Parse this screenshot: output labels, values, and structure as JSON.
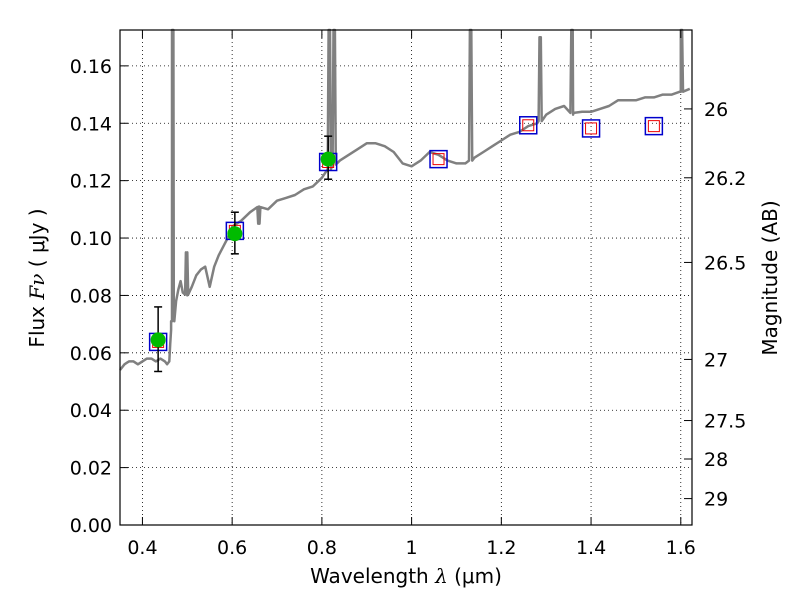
{
  "chart_data": {
    "type": "scatter",
    "xlabel_prefix": "Wavelength",
    "xlabel_symbol": "λ",
    "xlabel_unit": "(μm)",
    "ylabel_prefix": "Flux",
    "ylabel_symbol": "Fν",
    "ylabel_unit": "( μJy )",
    "y2label": "Magnitude (AB)",
    "xlim": [
      0.35,
      1.625
    ],
    "ylim": [
      0.0,
      0.1725
    ],
    "grid": true,
    "x_ticks": [
      0.4,
      0.6,
      0.8,
      1.0,
      1.2,
      1.4,
      1.6
    ],
    "x_tick_labels": [
      "0.4",
      "0.6",
      "0.8",
      "1",
      "1.2",
      "1.4",
      "1.6"
    ],
    "y_ticks": [
      0.0,
      0.02,
      0.04,
      0.06,
      0.08,
      0.1,
      0.12,
      0.14,
      0.16
    ],
    "y_tick_labels": [
      "0.00",
      "0.02",
      "0.04",
      "0.06",
      "0.08",
      "0.10",
      "0.12",
      "0.14",
      "0.16"
    ],
    "y2_tick_labels": [
      "26",
      "26.2",
      "26.5",
      "27",
      "27.5",
      "28",
      "29"
    ],
    "y2_tick_flux": [
      0.145,
      0.121,
      0.0915,
      0.0577,
      0.0364,
      0.023,
      0.0092
    ],
    "colors": {
      "model_spectrum": "#808080",
      "observed_marker": "#00bb00",
      "model_box": "#0000cc",
      "model_box_inner": "#ee0000",
      "errorbar": "#000000"
    },
    "series": [
      {
        "kind": "observed_photometry",
        "x": [
          0.435,
          0.606,
          0.814
        ],
        "y": [
          0.0645,
          0.1015,
          0.1275
        ],
        "yerr_low": [
          0.011,
          0.007,
          0.007
        ],
        "yerr_high": [
          0.0115,
          0.0075,
          0.008
        ]
      },
      {
        "kind": "model_photometry",
        "x": [
          0.435,
          0.606,
          0.814,
          1.06,
          1.26,
          1.4,
          1.54
        ],
        "y": [
          0.0638,
          0.1025,
          0.1265,
          0.1275,
          0.1393,
          0.1382,
          0.139
        ]
      },
      {
        "kind": "model_spectrum",
        "x": [
          0.35,
          0.36,
          0.37,
          0.38,
          0.39,
          0.4,
          0.41,
          0.42,
          0.43,
          0.44,
          0.45,
          0.455,
          0.46,
          0.462,
          0.464,
          0.466,
          0.47,
          0.475,
          0.48,
          0.485,
          0.49,
          0.5,
          0.51,
          0.52,
          0.53,
          0.54,
          0.55,
          0.56,
          0.57,
          0.58,
          0.59,
          0.6,
          0.62,
          0.64,
          0.66,
          0.68,
          0.7,
          0.72,
          0.74,
          0.76,
          0.78,
          0.8,
          0.82,
          0.84,
          0.86,
          0.88,
          0.9,
          0.92,
          0.94,
          0.96,
          0.98,
          1.0,
          1.02,
          1.04,
          1.06,
          1.08,
          1.1,
          1.12,
          1.14,
          1.16,
          1.18,
          1.2,
          1.22,
          1.24,
          1.26,
          1.28,
          1.3,
          1.32,
          1.34,
          1.36,
          1.38,
          1.4,
          1.42,
          1.44,
          1.46,
          1.48,
          1.5,
          1.52,
          1.54,
          1.56,
          1.58,
          1.6,
          1.62
        ],
        "y": [
          0.054,
          0.056,
          0.057,
          0.057,
          0.056,
          0.057,
          0.058,
          0.058,
          0.057,
          0.058,
          0.057,
          0.056,
          0.057,
          0.063,
          0.068,
          0.071,
          0.074,
          0.078,
          0.082,
          0.085,
          0.081,
          0.08,
          0.083,
          0.087,
          0.089,
          0.09,
          0.083,
          0.09,
          0.094,
          0.097,
          0.1,
          0.104,
          0.106,
          0.109,
          0.111,
          0.11,
          0.113,
          0.114,
          0.115,
          0.117,
          0.118,
          0.121,
          0.125,
          0.127,
          0.129,
          0.131,
          0.133,
          0.133,
          0.132,
          0.13,
          0.126,
          0.125,
          0.127,
          0.13,
          0.129,
          0.127,
          0.126,
          0.126,
          0.128,
          0.13,
          0.132,
          0.134,
          0.136,
          0.137,
          0.139,
          0.14,
          0.143,
          0.145,
          0.146,
          0.143,
          0.144,
          0.144,
          0.145,
          0.146,
          0.148,
          0.148,
          0.148,
          0.149,
          0.149,
          0.15,
          0.15,
          0.151,
          0.152
        ]
      }
    ],
    "emission_spikes": [
      {
        "x": 0.466,
        "peak": 0.1725
      },
      {
        "x": 0.497,
        "peak": 0.095
      },
      {
        "x": 0.658,
        "peak": 0.105
      },
      {
        "x": 0.815,
        "peak": 0.1725
      },
      {
        "x": 0.826,
        "peak": 0.1725
      },
      {
        "x": 1.13,
        "peak": 0.1725
      },
      {
        "x": 1.285,
        "peak": 0.17
      },
      {
        "x": 1.356,
        "peak": 0.1725
      },
      {
        "x": 1.6,
        "peak": 0.1725
      }
    ]
  }
}
